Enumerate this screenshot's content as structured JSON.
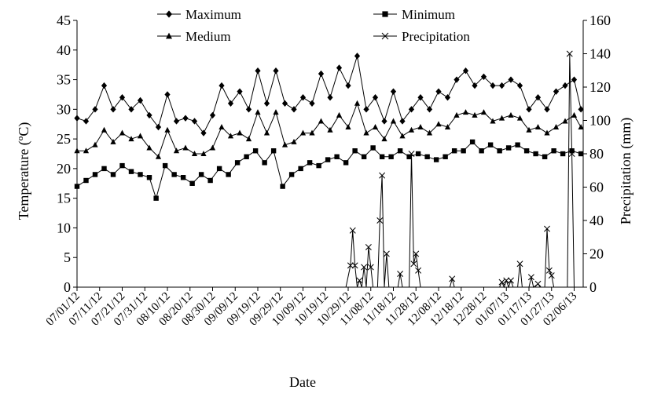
{
  "chart_data": {
    "type": "line",
    "title": "",
    "xlabel": "Date",
    "ylabel": "Temperature (ºC)",
    "y2label": "Precipitation (mm)",
    "ylim": [
      0,
      45
    ],
    "y2lim": [
      0,
      160
    ],
    "yticks": [
      0,
      5,
      10,
      15,
      20,
      25,
      30,
      35,
      40,
      45
    ],
    "y2ticks": [
      0,
      20,
      40,
      60,
      80,
      100,
      120,
      140,
      160
    ],
    "x_start": "07/01/12",
    "x_end": "02/10/13",
    "x_tick_labels": [
      "07/01/12",
      "07/11/12",
      "07/21/12",
      "07/31/12",
      "08/10/12",
      "08/20/12",
      "08/30/12",
      "09/09/12",
      "09/19/12",
      "09/29/12",
      "10/09/12",
      "10/19/12",
      "10/29/12",
      "11/08/12",
      "11/18/12",
      "11/28/12",
      "12/08/12",
      "12/18/12",
      "12/28/12",
      "01/07/13",
      "01/17/13",
      "01/27/13",
      "02/06/13"
    ],
    "legend": {
      "placement": "top",
      "columns": 2
    },
    "grid": false,
    "series": [
      {
        "name": "Maximum",
        "axis": "left",
        "marker": "diamond",
        "points": [
          [
            "07/01/12",
            28.5
          ],
          [
            "07/05/12",
            28
          ],
          [
            "07/09/12",
            30
          ],
          [
            "07/13/12",
            34
          ],
          [
            "07/17/12",
            30
          ],
          [
            "07/21/12",
            32
          ],
          [
            "07/25/12",
            30
          ],
          [
            "07/29/12",
            31.5
          ],
          [
            "08/02/12",
            29
          ],
          [
            "08/06/12",
            27
          ],
          [
            "08/10/12",
            32.5
          ],
          [
            "08/14/12",
            28
          ],
          [
            "08/18/12",
            28.5
          ],
          [
            "08/22/12",
            28
          ],
          [
            "08/26/12",
            26
          ],
          [
            "08/30/12",
            29
          ],
          [
            "09/03/12",
            34
          ],
          [
            "09/07/12",
            31
          ],
          [
            "09/11/12",
            33
          ],
          [
            "09/15/12",
            30
          ],
          [
            "09/19/12",
            36.5
          ],
          [
            "09/23/12",
            31
          ],
          [
            "09/27/12",
            36.5
          ],
          [
            "10/01/12",
            31
          ],
          [
            "10/05/12",
            30
          ],
          [
            "10/09/12",
            32
          ],
          [
            "10/13/12",
            31
          ],
          [
            "10/17/12",
            36
          ],
          [
            "10/21/12",
            32
          ],
          [
            "10/25/12",
            37
          ],
          [
            "10/29/12",
            34
          ],
          [
            "11/02/12",
            39
          ],
          [
            "11/06/12",
            30
          ],
          [
            "11/10/12",
            32
          ],
          [
            "11/14/12",
            28
          ],
          [
            "11/18/12",
            33
          ],
          [
            "11/22/12",
            28
          ],
          [
            "11/26/12",
            30
          ],
          [
            "11/30/12",
            32
          ],
          [
            "12/04/12",
            30
          ],
          [
            "12/08/12",
            33
          ],
          [
            "12/12/12",
            32
          ],
          [
            "12/16/12",
            35
          ],
          [
            "12/20/12",
            36.5
          ],
          [
            "12/24/12",
            34
          ],
          [
            "12/28/12",
            35.5
          ],
          [
            "01/01/13",
            34
          ],
          [
            "01/05/13",
            34
          ],
          [
            "01/09/13",
            35
          ],
          [
            "01/13/13",
            34
          ],
          [
            "01/17/13",
            30
          ],
          [
            "01/21/13",
            32
          ],
          [
            "01/25/13",
            30
          ],
          [
            "01/29/13",
            33
          ],
          [
            "02/02/13",
            34
          ],
          [
            "02/06/13",
            35
          ],
          [
            "02/09/13",
            30
          ]
        ]
      },
      {
        "name": "Minimum",
        "axis": "left",
        "marker": "square",
        "points": [
          [
            "07/01/12",
            17
          ],
          [
            "07/05/12",
            18
          ],
          [
            "07/09/12",
            19
          ],
          [
            "07/13/12",
            20
          ],
          [
            "07/17/12",
            19
          ],
          [
            "07/21/12",
            20.5
          ],
          [
            "07/25/12",
            19.5
          ],
          [
            "07/29/12",
            19
          ],
          [
            "08/02/12",
            18.5
          ],
          [
            "08/05/12",
            15
          ],
          [
            "08/09/12",
            20.5
          ],
          [
            "08/13/12",
            19
          ],
          [
            "08/17/12",
            18.5
          ],
          [
            "08/21/12",
            17.5
          ],
          [
            "08/25/12",
            19
          ],
          [
            "08/29/12",
            18
          ],
          [
            "09/02/12",
            20
          ],
          [
            "09/06/12",
            19
          ],
          [
            "09/10/12",
            21
          ],
          [
            "09/14/12",
            22
          ],
          [
            "09/18/12",
            23
          ],
          [
            "09/22/12",
            21
          ],
          [
            "09/26/12",
            23
          ],
          [
            "09/30/12",
            17
          ],
          [
            "10/04/12",
            19
          ],
          [
            "10/08/12",
            20
          ],
          [
            "10/12/12",
            21
          ],
          [
            "10/16/12",
            20.5
          ],
          [
            "10/20/12",
            21.5
          ],
          [
            "10/24/12",
            22
          ],
          [
            "10/28/12",
            21
          ],
          [
            "11/01/12",
            23
          ],
          [
            "11/05/12",
            22
          ],
          [
            "11/09/12",
            23.5
          ],
          [
            "11/13/12",
            22
          ],
          [
            "11/17/12",
            22
          ],
          [
            "11/21/12",
            23
          ],
          [
            "11/25/12",
            22
          ],
          [
            "11/29/12",
            22.5
          ],
          [
            "12/03/12",
            22
          ],
          [
            "12/07/12",
            21.5
          ],
          [
            "12/11/12",
            22
          ],
          [
            "12/15/12",
            23
          ],
          [
            "12/19/12",
            23
          ],
          [
            "12/23/12",
            24.5
          ],
          [
            "12/27/12",
            23
          ],
          [
            "12/31/12",
            24
          ],
          [
            "01/04/13",
            23
          ],
          [
            "01/08/13",
            23.5
          ],
          [
            "01/12/13",
            24
          ],
          [
            "01/16/13",
            23
          ],
          [
            "01/20/13",
            22.5
          ],
          [
            "01/24/13",
            22
          ],
          [
            "01/28/13",
            23
          ],
          [
            "02/01/13",
            22.5
          ],
          [
            "02/05/13",
            23
          ],
          [
            "02/09/13",
            22.5
          ]
        ]
      },
      {
        "name": "Medium",
        "axis": "left",
        "marker": "triangle",
        "points": [
          [
            "07/01/12",
            23
          ],
          [
            "07/05/12",
            23
          ],
          [
            "07/09/12",
            24
          ],
          [
            "07/13/12",
            26.5
          ],
          [
            "07/17/12",
            24.5
          ],
          [
            "07/21/12",
            26
          ],
          [
            "07/25/12",
            25
          ],
          [
            "07/29/12",
            25.5
          ],
          [
            "08/02/12",
            23.5
          ],
          [
            "08/06/12",
            22
          ],
          [
            "08/10/12",
            26.5
          ],
          [
            "08/14/12",
            23
          ],
          [
            "08/18/12",
            23.5
          ],
          [
            "08/22/12",
            22.5
          ],
          [
            "08/26/12",
            22.5
          ],
          [
            "08/30/12",
            23.5
          ],
          [
            "09/03/12",
            27
          ],
          [
            "09/07/12",
            25.5
          ],
          [
            "09/11/12",
            26
          ],
          [
            "09/15/12",
            25
          ],
          [
            "09/19/12",
            29.5
          ],
          [
            "09/23/12",
            26
          ],
          [
            "09/27/12",
            29.5
          ],
          [
            "10/01/12",
            24
          ],
          [
            "10/05/12",
            24.5
          ],
          [
            "10/09/12",
            26
          ],
          [
            "10/13/12",
            26
          ],
          [
            "10/17/12",
            28
          ],
          [
            "10/21/12",
            26.5
          ],
          [
            "10/25/12",
            29
          ],
          [
            "10/29/12",
            27
          ],
          [
            "11/02/12",
            31
          ],
          [
            "11/06/12",
            26
          ],
          [
            "11/10/12",
            27
          ],
          [
            "11/14/12",
            25
          ],
          [
            "11/18/12",
            28
          ],
          [
            "11/22/12",
            25.5
          ],
          [
            "11/26/12",
            26.5
          ],
          [
            "11/30/12",
            27
          ],
          [
            "12/04/12",
            26
          ],
          [
            "12/08/12",
            27.5
          ],
          [
            "12/12/12",
            27
          ],
          [
            "12/16/12",
            29
          ],
          [
            "12/20/12",
            29.5
          ],
          [
            "12/24/12",
            29
          ],
          [
            "12/28/12",
            29.5
          ],
          [
            "01/01/13",
            28
          ],
          [
            "01/05/13",
            28.5
          ],
          [
            "01/09/13",
            29
          ],
          [
            "01/13/13",
            28.5
          ],
          [
            "01/17/13",
            26.5
          ],
          [
            "01/21/13",
            27
          ],
          [
            "01/25/13",
            26
          ],
          [
            "01/29/13",
            27
          ],
          [
            "02/02/13",
            28
          ],
          [
            "02/06/13",
            29
          ],
          [
            "02/09/13",
            27
          ]
        ]
      },
      {
        "name": "Precipitation",
        "axis": "right",
        "marker": "x",
        "points": [
          [
            "07/01/12",
            0
          ],
          [
            "10/28/12",
            0
          ],
          [
            "10/30/12",
            13
          ],
          [
            "10/31/12",
            34
          ],
          [
            "11/01/12",
            13
          ],
          [
            "11/02/12",
            0
          ],
          [
            "11/03/12",
            4
          ],
          [
            "11/04/12",
            0
          ],
          [
            "11/05/12",
            12
          ],
          [
            "11/06/12",
            0
          ],
          [
            "11/07/12",
            24
          ],
          [
            "11/08/12",
            12
          ],
          [
            "11/09/12",
            0
          ],
          [
            "11/11/12",
            0
          ],
          [
            "11/12/12",
            40
          ],
          [
            "11/13/12",
            67
          ],
          [
            "11/14/12",
            0
          ],
          [
            "11/15/12",
            20
          ],
          [
            "11/16/12",
            0
          ],
          [
            "11/20/12",
            0
          ],
          [
            "11/21/12",
            8
          ],
          [
            "11/22/12",
            0
          ],
          [
            "11/25/12",
            0
          ],
          [
            "11/26/12",
            80
          ],
          [
            "11/27/12",
            14
          ],
          [
            "11/28/12",
            20
          ],
          [
            "11/29/12",
            10
          ],
          [
            "11/30/12",
            0
          ],
          [
            "12/13/12",
            0
          ],
          [
            "12/14/12",
            5
          ],
          [
            "12/15/12",
            0
          ],
          [
            "01/04/13",
            0
          ],
          [
            "01/05/13",
            3
          ],
          [
            "01/06/13",
            0
          ],
          [
            "01/07/13",
            4
          ],
          [
            "01/08/13",
            0
          ],
          [
            "01/09/13",
            4
          ],
          [
            "01/10/13",
            0
          ],
          [
            "01/12/13",
            0
          ],
          [
            "01/13/13",
            14
          ],
          [
            "01/14/13",
            0
          ],
          [
            "01/17/13",
            0
          ],
          [
            "01/18/13",
            6
          ],
          [
            "01/19/13",
            0
          ],
          [
            "01/21/13",
            2
          ],
          [
            "01/22/13",
            0
          ],
          [
            "01/24/13",
            0
          ],
          [
            "01/25/13",
            35
          ],
          [
            "01/26/13",
            10
          ],
          [
            "01/27/13",
            7
          ],
          [
            "01/28/13",
            0
          ],
          [
            "02/03/13",
            0
          ],
          [
            "02/04/13",
            140
          ],
          [
            "02/05/13",
            80
          ],
          [
            "02/06/13",
            0
          ],
          [
            "02/10/13",
            0
          ]
        ]
      }
    ]
  }
}
